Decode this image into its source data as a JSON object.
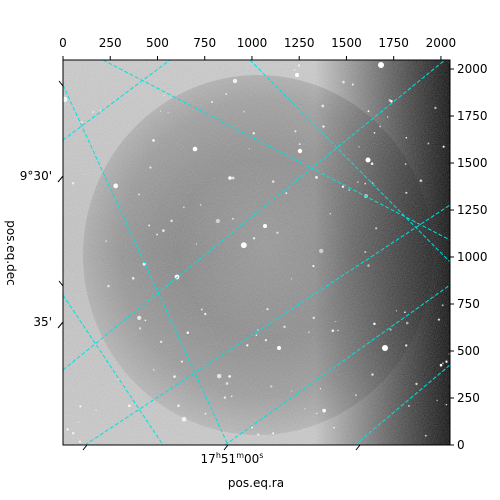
{
  "chart_data": {
    "type": "heatmap",
    "title": "",
    "xlabel": "pos.eq.ra",
    "ylabel": "pos.eq.dec",
    "pixel_axes": {
      "xlim": [
        0,
        2048
      ],
      "ylim": [
        0,
        2048
      ],
      "x_ticks": [
        0,
        250,
        500,
        750,
        1000,
        1250,
        1500,
        1750,
        2000
      ],
      "y_ticks": [
        0,
        250,
        500,
        750,
        1000,
        1250,
        1500,
        1750,
        2000
      ]
    },
    "world_axes": {
      "ra_tick_labels": [
        "17h51m00s"
      ],
      "dec_tick_labels": [
        "9°30'",
        "35'"
      ]
    },
    "colormap": "gray",
    "grid": true,
    "grid_color": "#00e0e0",
    "image_description_colors": {
      "background_light": "#c8c8c8",
      "nebula_dark": "#555555",
      "edge_dark": "#000000"
    }
  }
}
